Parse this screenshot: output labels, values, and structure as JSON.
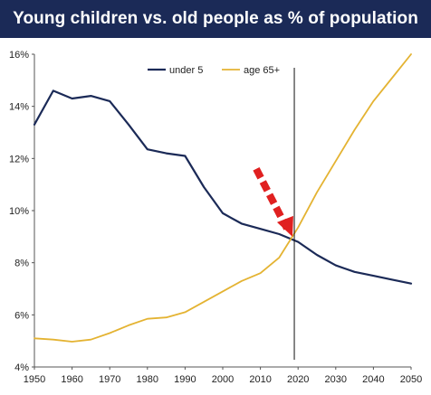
{
  "colors": {
    "title_bg": "#1b2a57",
    "under5": "#1b2a57",
    "age65": "#e4b332",
    "arrow": "#e02020",
    "marker_line": "#111111"
  },
  "chart_data": {
    "type": "line",
    "title": "Young children vs. old people as % of population",
    "xlabel": "",
    "ylabel": "",
    "xlim": [
      1950,
      2050
    ],
    "ylim": [
      4,
      16
    ],
    "x_ticks": [
      "1950",
      "1960",
      "1970",
      "1980",
      "1990",
      "2000",
      "2010",
      "2020",
      "2030",
      "2040",
      "2050"
    ],
    "y_ticks": [
      "4%",
      "6%",
      "8%",
      "10%",
      "12%",
      "14%",
      "16%"
    ],
    "legend_position": "top-center",
    "grid": false,
    "annotations": {
      "vertical_line_year": 2019,
      "arrow_points_to": [
        2018.5,
        9.0
      ]
    },
    "series": [
      {
        "name": "under 5",
        "color": "#1b2a57",
        "x": [
          1950,
          1955,
          1960,
          1965,
          1970,
          1975,
          1980,
          1985,
          1990,
          1995,
          2000,
          2005,
          2010,
          2015,
          2020,
          2025,
          2030,
          2035,
          2040,
          2045,
          2050
        ],
        "values": [
          13.3,
          14.6,
          14.3,
          14.4,
          14.2,
          13.3,
          12.35,
          12.2,
          12.1,
          10.9,
          9.9,
          9.5,
          9.3,
          9.1,
          8.8,
          8.3,
          7.9,
          7.65,
          7.5,
          7.35,
          7.2
        ]
      },
      {
        "name": "age 65+",
        "color": "#e4b332",
        "x": [
          1950,
          1955,
          1960,
          1965,
          1970,
          1975,
          1980,
          1985,
          1990,
          1995,
          2000,
          2005,
          2010,
          2015,
          2020,
          2025,
          2030,
          2035,
          2040,
          2045,
          2050
        ],
        "values": [
          5.1,
          5.05,
          4.97,
          5.05,
          5.3,
          5.6,
          5.85,
          5.9,
          6.1,
          6.5,
          6.9,
          7.3,
          7.6,
          8.2,
          9.35,
          10.7,
          11.9,
          13.1,
          14.2,
          15.1,
          16.0
        ]
      }
    ]
  }
}
